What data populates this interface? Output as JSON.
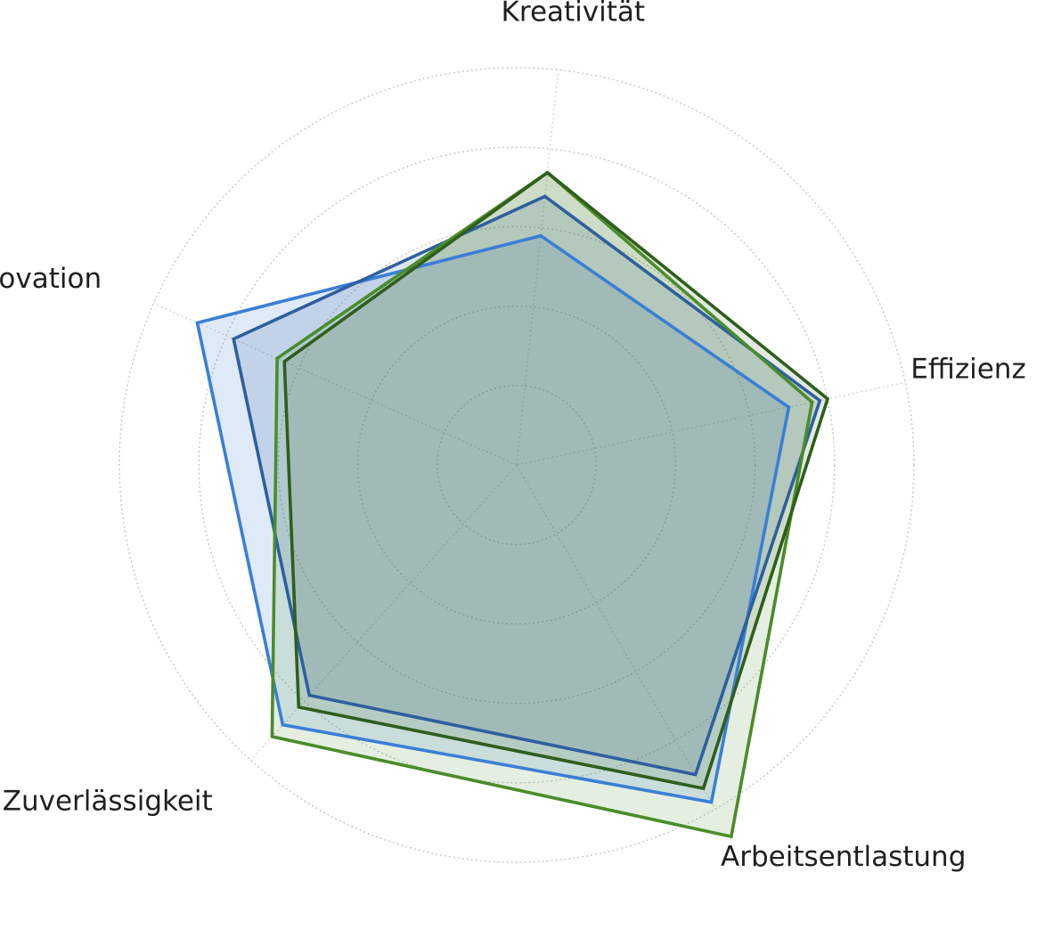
{
  "chart_data": {
    "type": "radar",
    "axes": [
      "Effizienz",
      "Kreativität",
      "Innovation",
      "Zuverlässigkeit",
      "Arbeitsentlastung"
    ],
    "rmax": 5,
    "grid_rings": 5,
    "grid": true,
    "series": [
      {
        "values": [
          3.5,
          2.9,
          4.4,
          4.4,
          4.9
        ],
        "line_color": "#3a7fd6",
        "fill_color": "#3a7fd6",
        "fill_opacity": 0.16
      },
      {
        "values": [
          3.9,
          3.4,
          3.9,
          3.9,
          4.5
        ],
        "line_color": "#2e5f9e",
        "fill_color": "#2e5f9e",
        "fill_opacity": 0.16
      },
      {
        "values": [
          3.8,
          3.7,
          3.3,
          4.6,
          5.4
        ],
        "line_color": "#4a8c2a",
        "fill_color": "#4a8c2a",
        "fill_opacity": 0.14
      },
      {
        "values": [
          4.0,
          3.7,
          3.2,
          4.1,
          4.7
        ],
        "line_color": "#2f5e1c",
        "fill_color": "#3d6b2a",
        "fill_opacity": 0.14
      }
    ]
  }
}
